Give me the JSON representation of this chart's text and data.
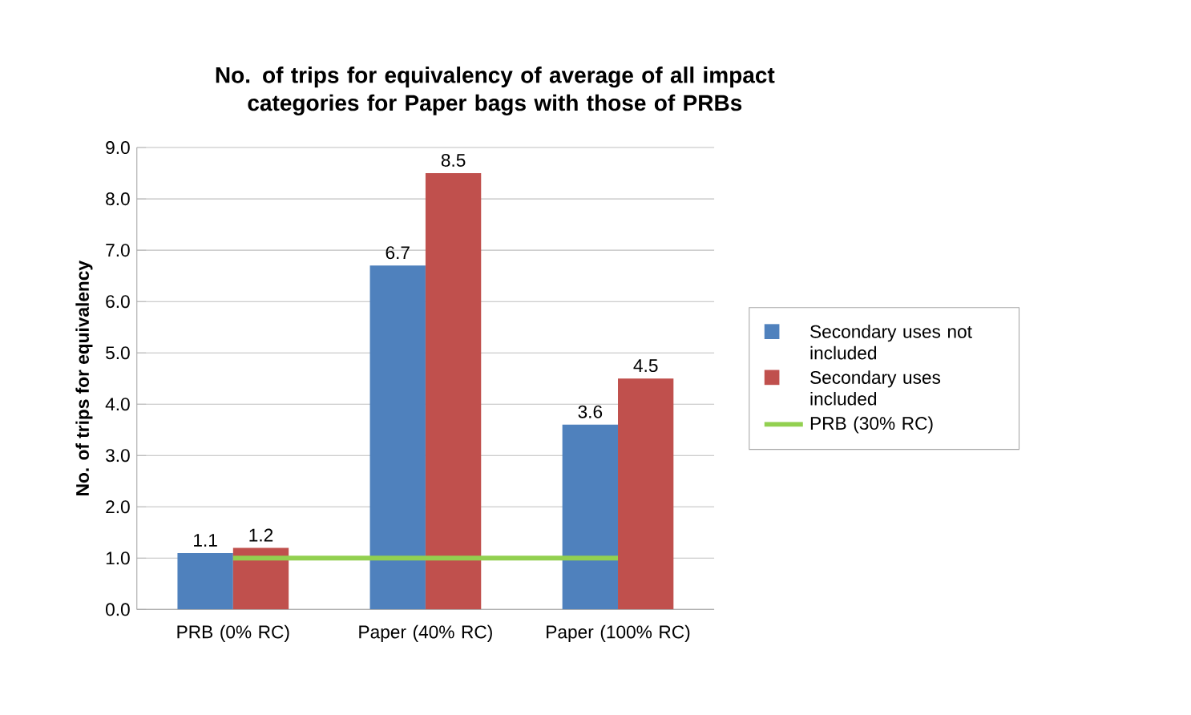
{
  "chart_data": {
    "type": "bar",
    "title": "No. of trips for equivalency of average of all impact categories for Paper bags with those of PRBs",
    "ylabel": "No. of trips for equivalency",
    "categories": [
      "PRB (0% RC)",
      "Paper (40% RC)",
      "Paper (100% RC)"
    ],
    "series": [
      {
        "name": "Secondary uses not included",
        "color": "#4f81bd",
        "values": [
          1.1,
          6.7,
          3.6
        ],
        "value_labels": [
          "1.1",
          "6.7",
          "3.6"
        ]
      },
      {
        "name": "Secondary uses included",
        "color": "#c0504d",
        "values": [
          1.2,
          8.5,
          4.5
        ],
        "value_labels": [
          "1.2",
          "8.5",
          "4.5"
        ]
      },
      {
        "name": "PRB (30% RC)",
        "type": "line",
        "color": "#92d050",
        "values": [
          1.0,
          1.0,
          1.0
        ]
      }
    ],
    "ylim": [
      0,
      9
    ],
    "yticks": [
      {
        "value": 0,
        "label": "0.0"
      },
      {
        "value": 1,
        "label": "1.0"
      },
      {
        "value": 2,
        "label": "2.0"
      },
      {
        "value": 3,
        "label": "3.0"
      },
      {
        "value": 4,
        "label": "4.0"
      },
      {
        "value": 5,
        "label": "5.0"
      },
      {
        "value": 6,
        "label": "6.0"
      },
      {
        "value": 7,
        "label": "7.0"
      },
      {
        "value": 8,
        "label": "8.0"
      },
      {
        "value": 9,
        "label": "9.0"
      }
    ],
    "grid": "y",
    "legend": "right",
    "marker": "none",
    "line_style": "solid"
  }
}
